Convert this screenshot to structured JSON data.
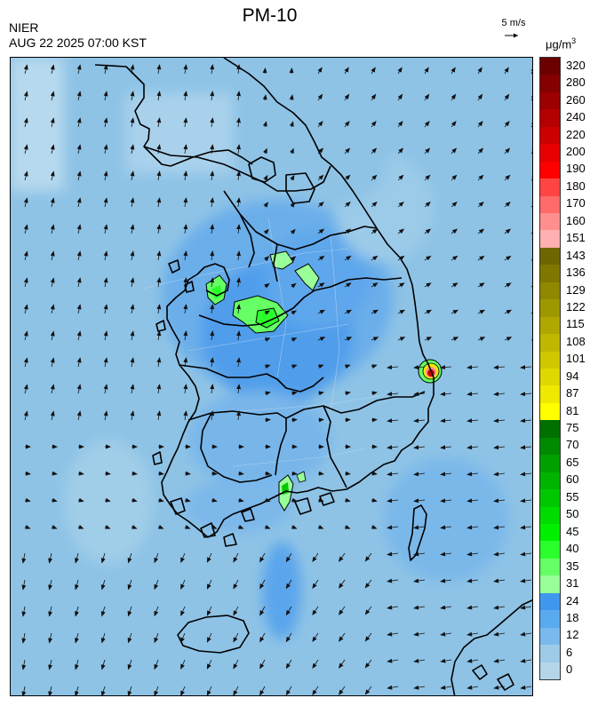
{
  "header": {
    "title": "PM-10",
    "agency": "NIER",
    "datetime": "AUG 22 2025 07:00 KST",
    "wind_reference": "5 m/s",
    "unit_base": "μg/m",
    "unit_exp": "3"
  },
  "legend": {
    "labels": [
      "320",
      "280",
      "260",
      "240",
      "220",
      "200",
      "190",
      "180",
      "170",
      "160",
      "151",
      "143",
      "136",
      "129",
      "122",
      "115",
      "108",
      "101",
      "94",
      "87",
      "81",
      "75",
      "70",
      "65",
      "60",
      "55",
      "50",
      "45",
      "40",
      "35",
      "31",
      "24",
      "18",
      "12",
      "6",
      "0"
    ],
    "colors": [
      "#6b0000",
      "#850000",
      "#9c0000",
      "#b40000",
      "#cc0000",
      "#e60000",
      "#ff0000",
      "#ff4444",
      "#ff6a6a",
      "#ff8f8f",
      "#ffb0b0",
      "#6e6600",
      "#7f7700",
      "#8f8800",
      "#9e9800",
      "#afa800",
      "#c0b800",
      "#cfc800",
      "#dfd800",
      "#efe800",
      "#ffff00",
      "#007000",
      "#008a00",
      "#00a000",
      "#00b400",
      "#00c800",
      "#00dc00",
      "#00f000",
      "#2bff2b",
      "#66ff66",
      "#99ff99",
      "#3f98ee",
      "#5aaaf0",
      "#7ab9ed",
      "#9dcbe8",
      "#b4d6e8"
    ],
    "icons": [
      "wind-arrow-icon"
    ]
  }
}
